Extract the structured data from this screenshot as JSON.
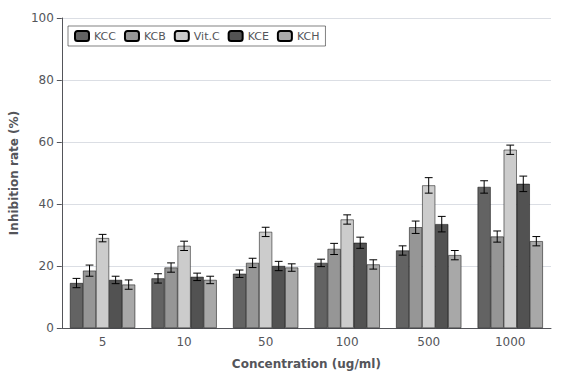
{
  "chart_data": {
    "type": "bar",
    "xlabel": "Concentration (ug/ml)",
    "ylabel": "Inhibition rate (%)",
    "categories": [
      "5",
      "10",
      "50",
      "100",
      "500",
      "1000"
    ],
    "series": [
      {
        "name": "KCC",
        "color": "#636363",
        "values": [
          14.5,
          16.0,
          17.5,
          21.0,
          25.0,
          45.5
        ],
        "errors": [
          1.5,
          1.5,
          1.2,
          1.2,
          1.5,
          2.0
        ]
      },
      {
        "name": "KCB",
        "color": "#969696",
        "values": [
          18.5,
          19.5,
          21.0,
          25.5,
          32.5,
          29.5
        ],
        "errors": [
          1.8,
          1.5,
          1.5,
          1.8,
          2.0,
          1.8
        ]
      },
      {
        "name": "Vit.C",
        "color": "#cccccc",
        "values": [
          29.0,
          26.5,
          31.0,
          35.0,
          46.0,
          57.5
        ],
        "errors": [
          1.2,
          1.5,
          1.5,
          1.5,
          2.5,
          1.5
        ]
      },
      {
        "name": "KCE",
        "color": "#525252",
        "values": [
          15.5,
          16.5,
          20.0,
          27.5,
          33.5,
          46.5
        ],
        "errors": [
          1.2,
          1.2,
          1.5,
          1.8,
          2.5,
          2.5
        ]
      },
      {
        "name": "KCH",
        "color": "#a8a8a8",
        "values": [
          14.0,
          15.5,
          19.5,
          20.5,
          23.5,
          28.0
        ],
        "errors": [
          1.5,
          1.2,
          1.2,
          1.5,
          1.5,
          1.5
        ]
      }
    ],
    "ylim": [
      0,
      100
    ],
    "yticks": [
      0,
      20,
      40,
      60,
      80,
      100
    ],
    "grid": true,
    "legend": "upper left"
  }
}
